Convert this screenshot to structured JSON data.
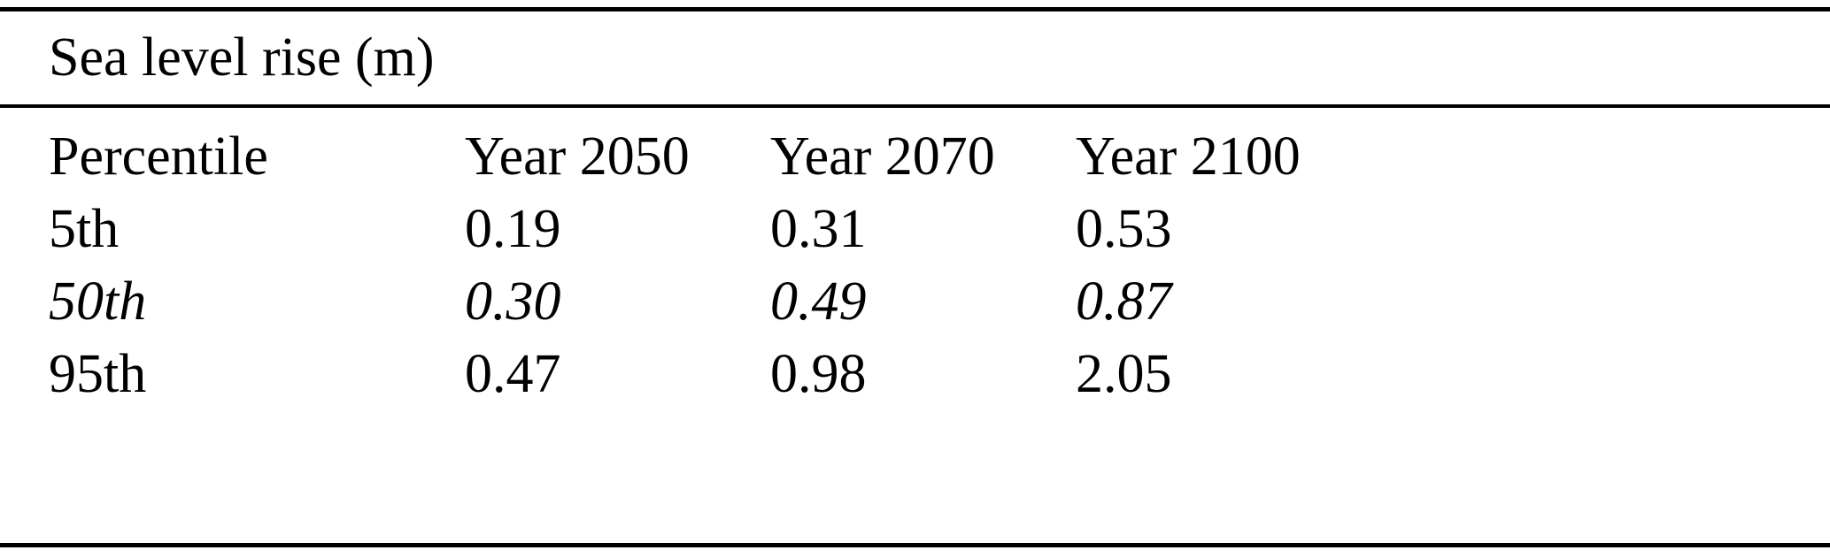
{
  "table": {
    "title": "Sea level rise (m)",
    "columns": [
      "Percentile",
      "Year 2050",
      "Year 2070",
      "Year 2100"
    ],
    "rows": [
      {
        "cells": [
          "5th",
          "0.19",
          "0.31",
          "0.53"
        ]
      },
      {
        "cells": [
          "50th",
          "0.30",
          "0.49",
          "0.87"
        ]
      },
      {
        "cells": [
          "95th",
          "0.47",
          "0.98",
          "2.05"
        ]
      }
    ]
  },
  "chart_data": {
    "type": "table",
    "title": "Sea level rise (m)",
    "columns": [
      "Percentile",
      "Year 2050",
      "Year 2070",
      "Year 2100"
    ],
    "rows": [
      [
        "5th",
        0.19,
        0.31,
        0.53
      ],
      [
        "50th",
        0.3,
        0.49,
        0.87
      ],
      [
        "95th",
        0.47,
        0.98,
        2.05
      ]
    ],
    "notes": "Median (50th percentile) row rendered in italics"
  },
  "colors": {
    "text": "#000000",
    "background": "#ffffff",
    "rule": "#000000"
  }
}
